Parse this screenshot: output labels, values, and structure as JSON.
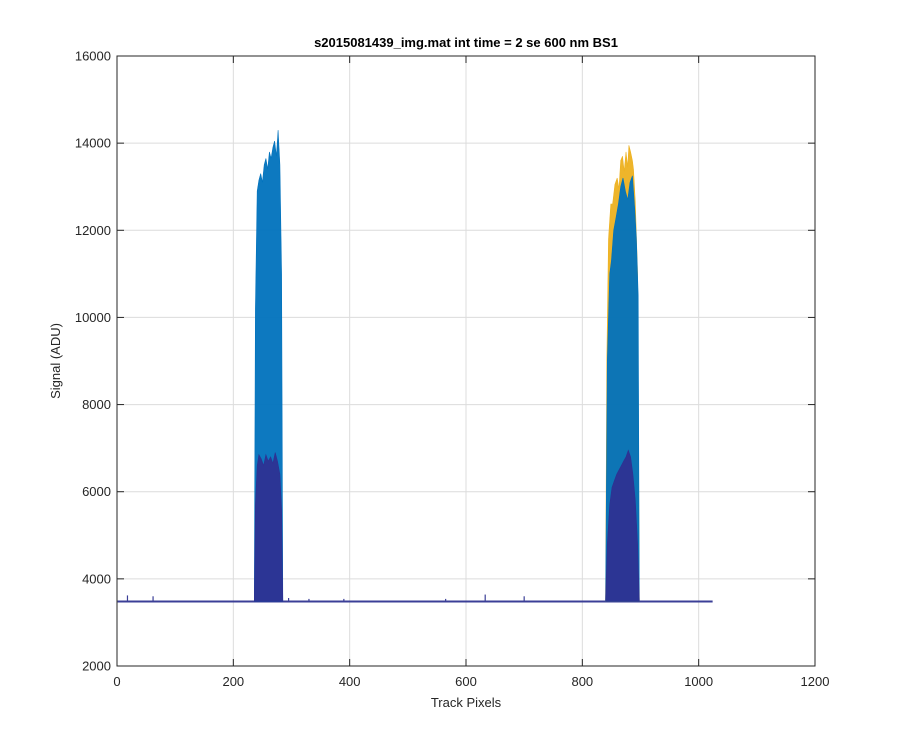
{
  "chart_data": {
    "type": "area",
    "title": "s2015081439_img.mat int time = 2 se  600 nm BS1",
    "xlabel": "Track Pixels",
    "ylabel": "Signal (ADU)",
    "xlim": [
      0,
      1200
    ],
    "ylim": [
      2000,
      16000
    ],
    "xticks": [
      0,
      200,
      400,
      600,
      800,
      1000,
      1200
    ],
    "yticks": [
      2000,
      4000,
      6000,
      8000,
      10000,
      12000,
      14000,
      16000
    ],
    "grid": true,
    "baseline_value": 3480,
    "x_extent": [
      1,
      1024
    ],
    "series": [
      {
        "color": "#EDB120",
        "peaks": [
          {
            "x": [
              840,
              842,
              845,
              849,
              852,
              856,
              860,
              863,
              866,
              869,
              872,
              875,
              878,
              880,
              883,
              886,
              888,
              891,
              895,
              898
            ],
            "y": [
              3520,
              9000,
              11800,
              12600,
              12600,
              13050,
              13200,
              12950,
              13600,
              13700,
              13350,
              13800,
              13450,
              13950,
              13800,
              13600,
              13400,
              12650,
              11000,
              3520
            ]
          }
        ]
      },
      {
        "color": "#0072BD",
        "peaks": [
          {
            "x": [
              236,
              238,
              241,
              244,
              247,
              250,
              253,
              256,
              259,
              262,
              265,
              268,
              271,
              274,
              277,
              280,
              283,
              285
            ],
            "y": [
              3520,
              10200,
              12900,
              13150,
              13300,
              13100,
              13500,
              13650,
              13400,
              13800,
              13650,
              13900,
              14050,
              13700,
              14300,
              13500,
              11000,
              3520
            ]
          },
          {
            "x": [
              840,
              843,
              847,
              850,
              854,
              858,
              862,
              866,
              870,
              874,
              878,
              882,
              886,
              890,
              893,
              896,
              898
            ],
            "y": [
              3520,
              9000,
              11000,
              11300,
              12000,
              12300,
              12600,
              13000,
              13200,
              12900,
              12700,
              13100,
              13250,
              12500,
              11800,
              10500,
              3520
            ]
          }
        ]
      },
      {
        "color": "#2E3192",
        "peaks": [
          {
            "x": [
              236,
              238,
              241,
              244,
              248,
              252,
              256,
              260,
              264,
              268,
              272,
              276,
              280,
              283,
              285
            ],
            "y": [
              3520,
              5700,
              6600,
              6850,
              6750,
              6600,
              6850,
              6700,
              6800,
              6650,
              6900,
              6700,
              6400,
              5600,
              3520
            ]
          },
          {
            "x": [
              840,
              843,
              847,
              851,
              855,
              859,
              863,
              867,
              871,
              875,
              879,
              883,
              887,
              891,
              895,
              898
            ],
            "y": [
              3520,
              4800,
              5700,
              6100,
              6250,
              6400,
              6500,
              6600,
              6700,
              6800,
              6950,
              6800,
              6400,
              5800,
              4800,
              3520
            ]
          }
        ]
      }
    ],
    "baseline_spikes": [
      {
        "x": 18,
        "y": 3620
      },
      {
        "x": 62,
        "y": 3600
      },
      {
        "x": 258,
        "y": 3570
      },
      {
        "x": 295,
        "y": 3560
      },
      {
        "x": 330,
        "y": 3540
      },
      {
        "x": 390,
        "y": 3540
      },
      {
        "x": 565,
        "y": 3540
      },
      {
        "x": 633,
        "y": 3640
      },
      {
        "x": 700,
        "y": 3600
      }
    ]
  }
}
